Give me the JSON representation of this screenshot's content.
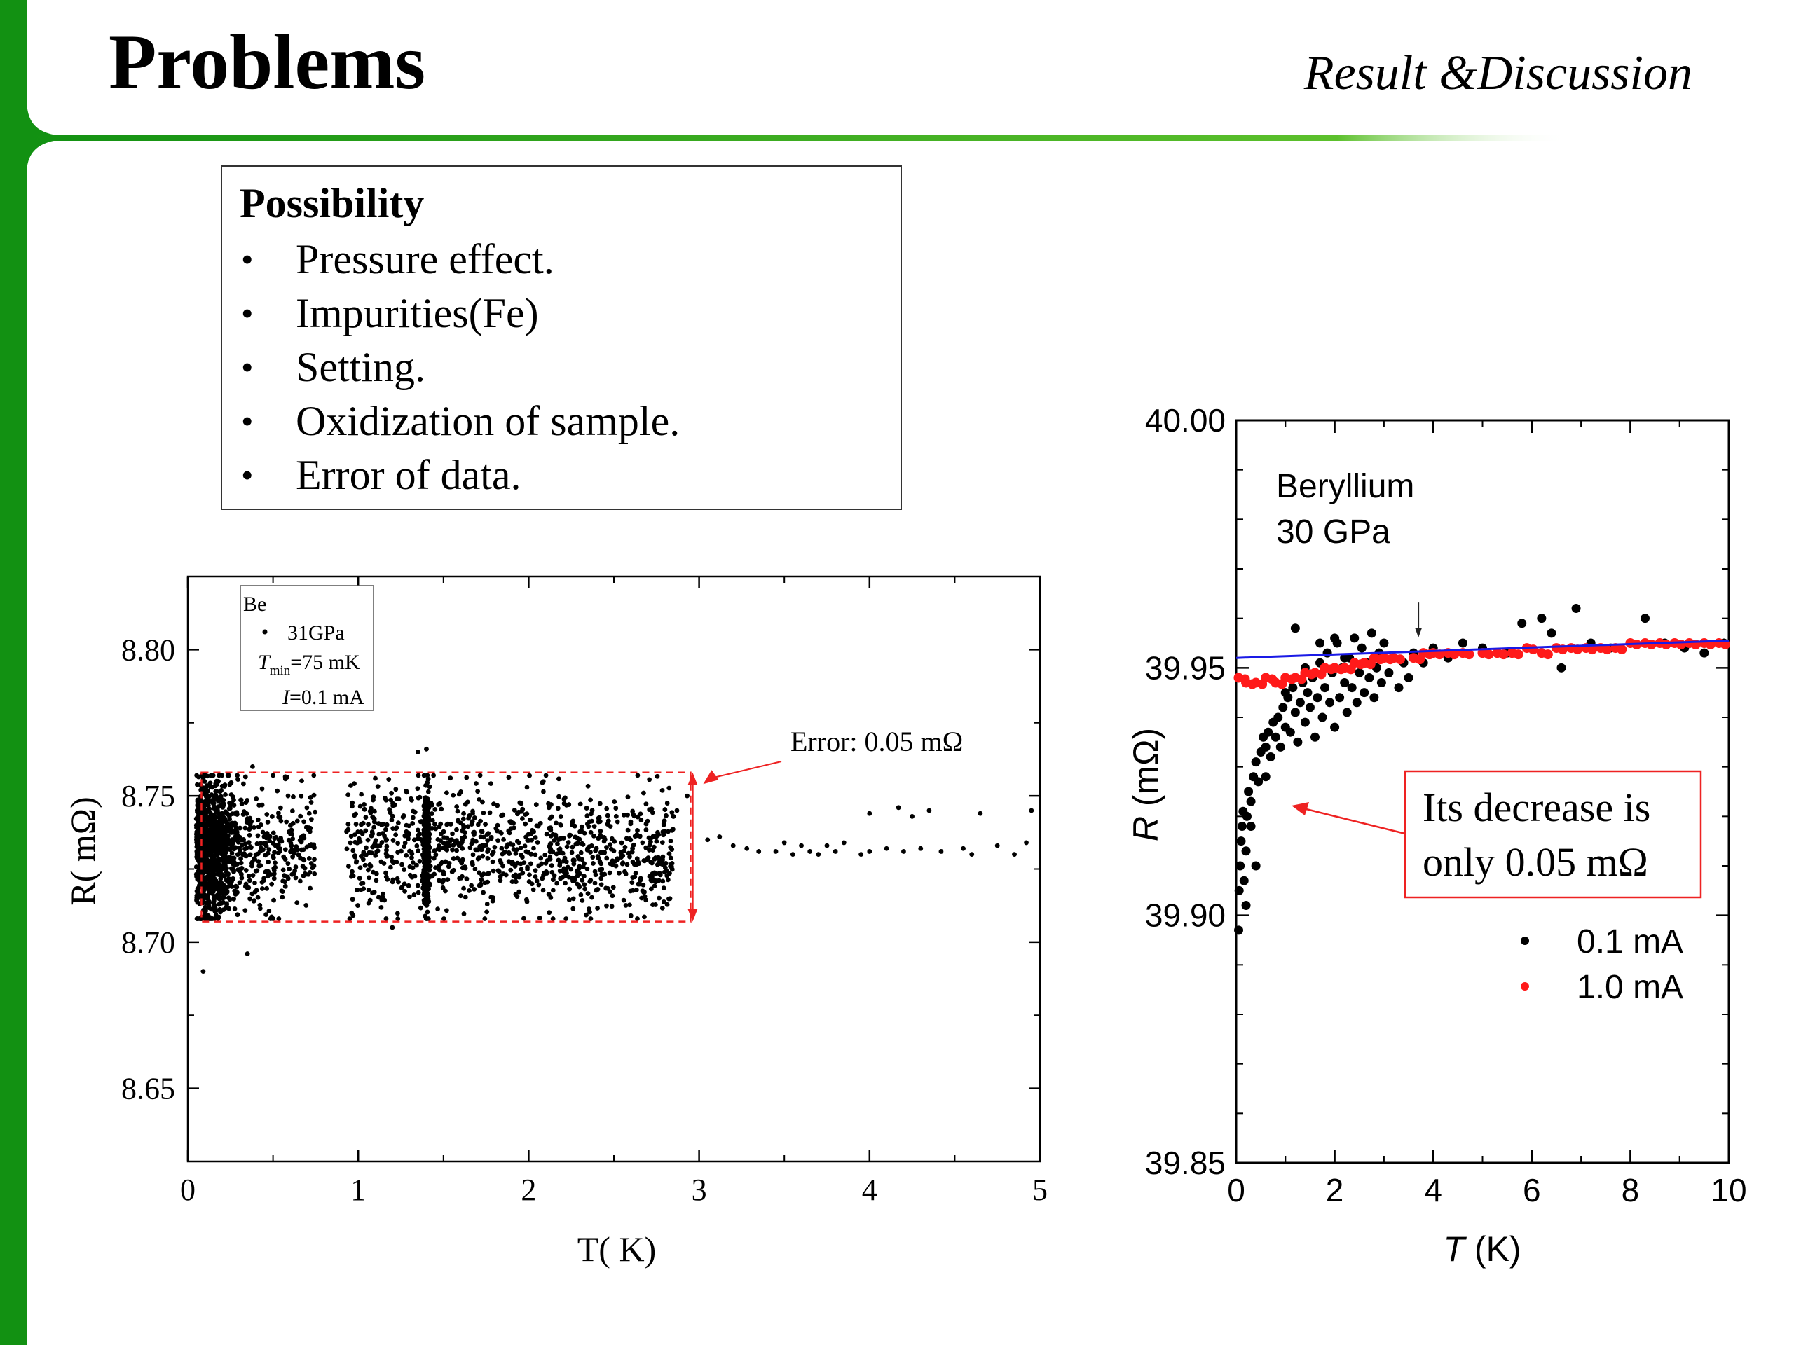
{
  "slide": {
    "title": "Problems",
    "section": "Result &Discussion",
    "accent_color": "#129112"
  },
  "possibility": {
    "title": "Possibility",
    "items": [
      "Pressure effect.",
      "Impurities(Fe)",
      "Setting.",
      "Oxidization of sample.",
      "Error of data."
    ]
  },
  "chart_data": [
    {
      "type": "scatter",
      "xlabel": "T( K)",
      "ylabel": "R( mΩ)",
      "xlim": [
        0,
        5
      ],
      "ylim": [
        8.625,
        8.825
      ],
      "xticks": [
        "0",
        "1",
        "2",
        "3",
        "4",
        "5"
      ],
      "yticks": [
        "8.65",
        "8.70",
        "8.75",
        "8.80"
      ],
      "legend": {
        "placement": "top-left",
        "title": "Be",
        "series_label": "31GPa",
        "tmin_label": "=75 mK",
        "current_label": "=0.1 mA",
        "tmin_symbol": "T",
        "tmin_subscript": "min",
        "current_symbol": "I"
      },
      "annotation": "Error: 0.05 mΩ",
      "error_band": {
        "x": [
          0.08,
          2.95
        ],
        "upper": 8.758,
        "lower": 8.707
      },
      "dense_region": {
        "x": [
          0.05,
          2.85
        ],
        "center": 8.732,
        "spread": 0.012
      },
      "outliers": [
        [
          0.09,
          8.69
        ],
        [
          0.35,
          8.696
        ],
        [
          0.38,
          8.76
        ],
        [
          1.35,
          8.765
        ],
        [
          1.4,
          8.766
        ],
        [
          1.2,
          8.705
        ],
        [
          0.2,
          8.757
        ],
        [
          2.6,
          8.709
        ],
        [
          0.5,
          8.708
        ],
        [
          1.1,
          8.756
        ]
      ],
      "tail_points": [
        [
          2.87,
          8.745
        ],
        [
          2.93,
          8.75
        ],
        [
          3.05,
          8.735
        ],
        [
          3.12,
          8.736
        ],
        [
          3.2,
          8.733
        ],
        [
          3.28,
          8.732
        ],
        [
          3.35,
          8.731
        ],
        [
          3.45,
          8.731
        ],
        [
          3.5,
          8.734
        ],
        [
          3.55,
          8.73
        ],
        [
          3.6,
          8.733
        ],
        [
          3.65,
          8.731
        ],
        [
          3.7,
          8.73
        ],
        [
          3.75,
          8.733
        ],
        [
          3.8,
          8.731
        ],
        [
          3.85,
          8.734
        ],
        [
          3.95,
          8.73
        ],
        [
          4.0,
          8.731
        ],
        [
          4.1,
          8.732
        ],
        [
          4.2,
          8.731
        ],
        [
          4.3,
          8.732
        ],
        [
          4.42,
          8.731
        ],
        [
          4.6,
          8.73
        ],
        [
          4.75,
          8.733
        ],
        [
          4.85,
          8.73
        ],
        [
          4.0,
          8.744
        ],
        [
          4.17,
          8.746
        ],
        [
          4.35,
          8.745
        ],
        [
          4.65,
          8.744
        ],
        [
          4.95,
          8.745
        ],
        [
          4.25,
          8.743
        ],
        [
          4.55,
          8.732
        ],
        [
          4.92,
          8.734
        ]
      ]
    },
    {
      "type": "scatter",
      "xlabel": "T (K)",
      "ylabel": "R (mΩ)",
      "xlim": [
        0,
        10
      ],
      "ylim": [
        39.85,
        40.0
      ],
      "xticks": [
        "0",
        "2",
        "4",
        "6",
        "8",
        "10"
      ],
      "yticks": [
        "39.85",
        "39.90",
        "39.95",
        "40.00"
      ],
      "inner_label": [
        "Beryllium",
        "30 GPa"
      ],
      "callout": [
        "Its decrease is",
        "only 0.05 mΩ"
      ],
      "legend": {
        "placement": "bottom-right"
      },
      "series": [
        {
          "name": "0.1 mA",
          "color": "#000000",
          "points": [
            [
              0.05,
              39.897
            ],
            [
              0.06,
              39.905
            ],
            [
              0.08,
              39.91
            ],
            [
              0.1,
              39.915
            ],
            [
              0.12,
              39.918
            ],
            [
              0.14,
              39.921
            ],
            [
              0.16,
              39.907
            ],
            [
              0.2,
              39.913
            ],
            [
              0.22,
              39.92
            ],
            [
              0.25,
              39.925
            ],
            [
              0.3,
              39.923
            ],
            [
              0.35,
              39.928
            ],
            [
              0.4,
              39.931
            ],
            [
              0.45,
              39.927
            ],
            [
              0.5,
              39.933
            ],
            [
              0.55,
              39.936
            ],
            [
              0.6,
              39.934
            ],
            [
              0.65,
              39.937
            ],
            [
              0.7,
              39.932
            ],
            [
              0.75,
              39.939
            ],
            [
              0.8,
              39.936
            ],
            [
              0.85,
              39.94
            ],
            [
              0.9,
              39.934
            ],
            [
              0.95,
              39.942
            ],
            [
              1.0,
              39.938
            ],
            [
              1.05,
              39.944
            ],
            [
              1.1,
              39.937
            ],
            [
              1.15,
              39.946
            ],
            [
              1.2,
              39.941
            ],
            [
              1.25,
              39.935
            ],
            [
              1.3,
              39.943
            ],
            [
              1.35,
              39.947
            ],
            [
              1.4,
              39.939
            ],
            [
              1.45,
              39.945
            ],
            [
              1.5,
              39.942
            ],
            [
              1.55,
              39.948
            ],
            [
              1.6,
              39.936
            ],
            [
              1.65,
              39.944
            ],
            [
              1.7,
              39.951
            ],
            [
              1.75,
              39.94
            ],
            [
              1.8,
              39.946
            ],
            [
              1.85,
              39.953
            ],
            [
              1.9,
              39.943
            ],
            [
              1.95,
              39.949
            ],
            [
              2.0,
              39.938
            ],
            [
              2.05,
              39.955
            ],
            [
              2.1,
              39.944
            ],
            [
              2.15,
              39.95
            ],
            [
              2.2,
              39.947
            ],
            [
              2.25,
              39.941
            ],
            [
              2.3,
              39.952
            ],
            [
              2.35,
              39.946
            ],
            [
              2.4,
              39.956
            ],
            [
              2.45,
              39.943
            ],
            [
              2.5,
              39.949
            ],
            [
              2.55,
              39.954
            ],
            [
              2.6,
              39.945
            ],
            [
              2.65,
              39.951
            ],
            [
              2.7,
              39.948
            ],
            [
              2.75,
              39.957
            ],
            [
              2.8,
              39.944
            ],
            [
              2.85,
              39.95
            ],
            [
              2.9,
              39.953
            ],
            [
              2.95,
              39.947
            ],
            [
              3.0,
              39.955
            ],
            [
              3.1,
              39.949
            ],
            [
              3.2,
              39.952
            ],
            [
              3.3,
              39.946
            ],
            [
              3.4,
              39.951
            ],
            [
              3.5,
              39.948
            ],
            [
              3.6,
              39.953
            ],
            [
              3.8,
              39.951
            ],
            [
              4.0,
              39.954
            ],
            [
              4.3,
              39.952
            ],
            [
              4.6,
              39.955
            ],
            [
              5.0,
              39.954
            ],
            [
              5.5,
              39.953
            ],
            [
              5.8,
              39.959
            ],
            [
              6.2,
              39.96
            ],
            [
              6.4,
              39.957
            ],
            [
              6.6,
              39.95
            ],
            [
              6.9,
              39.962
            ],
            [
              7.2,
              39.955
            ],
            [
              7.6,
              39.954
            ],
            [
              8.0,
              39.955
            ],
            [
              8.3,
              39.96
            ],
            [
              8.7,
              39.955
            ],
            [
              9.1,
              39.954
            ],
            [
              9.5,
              39.953
            ],
            [
              9.9,
              39.955
            ],
            [
              1.2,
              39.958
            ],
            [
              2.0,
              39.956
            ],
            [
              0.3,
              39.918
            ],
            [
              0.4,
              39.91
            ],
            [
              0.2,
              39.902
            ],
            [
              0.6,
              39.928
            ],
            [
              1.0,
              39.945
            ],
            [
              1.4,
              39.95
            ],
            [
              1.7,
              39.955
            ],
            [
              2.2,
              39.952
            ]
          ]
        },
        {
          "name": "1.0 mA",
          "color": "#ff1a1a",
          "points": [
            [
              0.05,
              39.948
            ],
            [
              0.2,
              39.947
            ],
            [
              0.4,
              39.947
            ],
            [
              0.6,
              39.948
            ],
            [
              0.8,
              39.947
            ],
            [
              1.0,
              39.948
            ],
            [
              1.2,
              39.948
            ],
            [
              1.4,
              39.949
            ],
            [
              1.6,
              39.949
            ],
            [
              1.8,
              39.95
            ],
            [
              2.0,
              39.95
            ],
            [
              2.2,
              39.95
            ],
            [
              2.4,
              39.951
            ],
            [
              2.6,
              39.951
            ],
            [
              2.8,
              39.952
            ],
            [
              3.0,
              39.952
            ],
            [
              3.2,
              39.952
            ],
            [
              3.6,
              39.952
            ],
            [
              3.8,
              39.953
            ],
            [
              4.0,
              39.953
            ],
            [
              4.3,
              39.953
            ],
            [
              4.6,
              39.953
            ],
            [
              5.0,
              39.953
            ],
            [
              5.3,
              39.953
            ],
            [
              5.6,
              39.953
            ],
            [
              5.9,
              39.954
            ],
            [
              6.2,
              39.953
            ],
            [
              6.5,
              39.954
            ],
            [
              6.8,
              39.954
            ],
            [
              7.1,
              39.954
            ],
            [
              7.4,
              39.954
            ],
            [
              7.7,
              39.954
            ],
            [
              8.0,
              39.955
            ],
            [
              8.3,
              39.955
            ],
            [
              8.6,
              39.955
            ],
            [
              8.9,
              39.955
            ],
            [
              9.2,
              39.955
            ],
            [
              9.5,
              39.955
            ],
            [
              9.8,
              39.955
            ]
          ]
        }
      ],
      "fit_line": {
        "color": "#1a1ae6",
        "x": [
          0,
          10
        ],
        "y": [
          39.952,
          39.9555
        ]
      },
      "arrow_marker": {
        "x": 3.7,
        "y": 39.953
      }
    }
  ]
}
